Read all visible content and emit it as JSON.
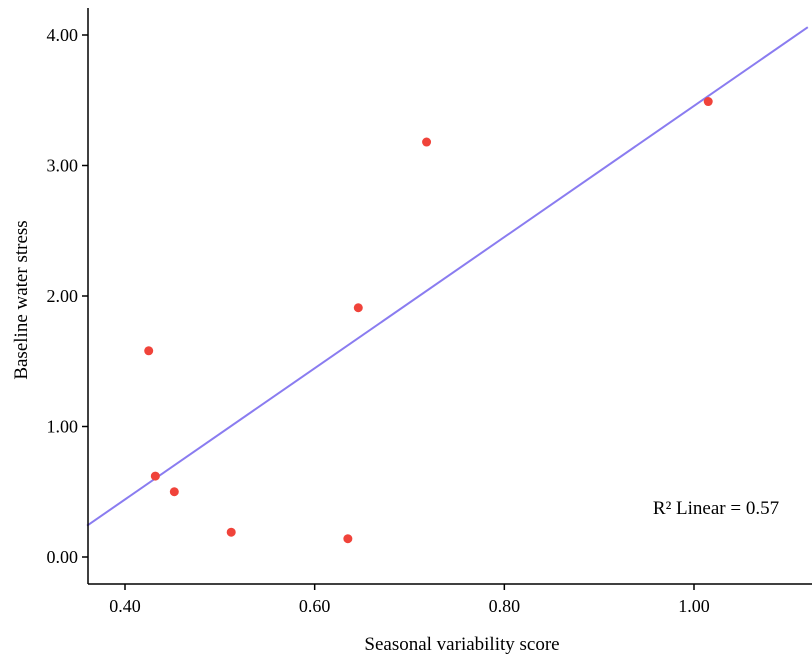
{
  "chart_data": {
    "type": "scatter",
    "title": "",
    "xlabel": "Seasonal variability score",
    "ylabel": "Baseline water stress",
    "xlim": [
      0.36,
      1.12
    ],
    "ylim": [
      -0.08,
      4.2
    ],
    "x_ticks": [
      "0.40",
      "0.60",
      "0.80",
      "1.00"
    ],
    "y_ticks": [
      "0.00",
      "1.00",
      "2.00",
      "3.00",
      "4.00"
    ],
    "x_tick_values": [
      0.4,
      0.6,
      0.8,
      1.0
    ],
    "y_tick_values": [
      0.0,
      1.0,
      2.0,
      3.0,
      4.0
    ],
    "series": [
      {
        "points": [
          {
            "x": 0.425,
            "y": 1.58
          },
          {
            "x": 0.432,
            "y": 0.62
          },
          {
            "x": 0.452,
            "y": 0.5
          },
          {
            "x": 0.512,
            "y": 0.19
          },
          {
            "x": 0.635,
            "y": 0.14
          },
          {
            "x": 0.646,
            "y": 1.91
          },
          {
            "x": 0.718,
            "y": 3.18
          },
          {
            "x": 1.015,
            "y": 3.49
          }
        ],
        "color": "#f0433a"
      }
    ],
    "fit_line": {
      "type": "linear",
      "x_start": 0.36,
      "y_start": 0.24,
      "x_end": 1.12,
      "y_end": 4.06,
      "color": "#8a7cf0"
    },
    "annotation": "R² Linear = 0.57",
    "grid": false,
    "legend": "none"
  }
}
